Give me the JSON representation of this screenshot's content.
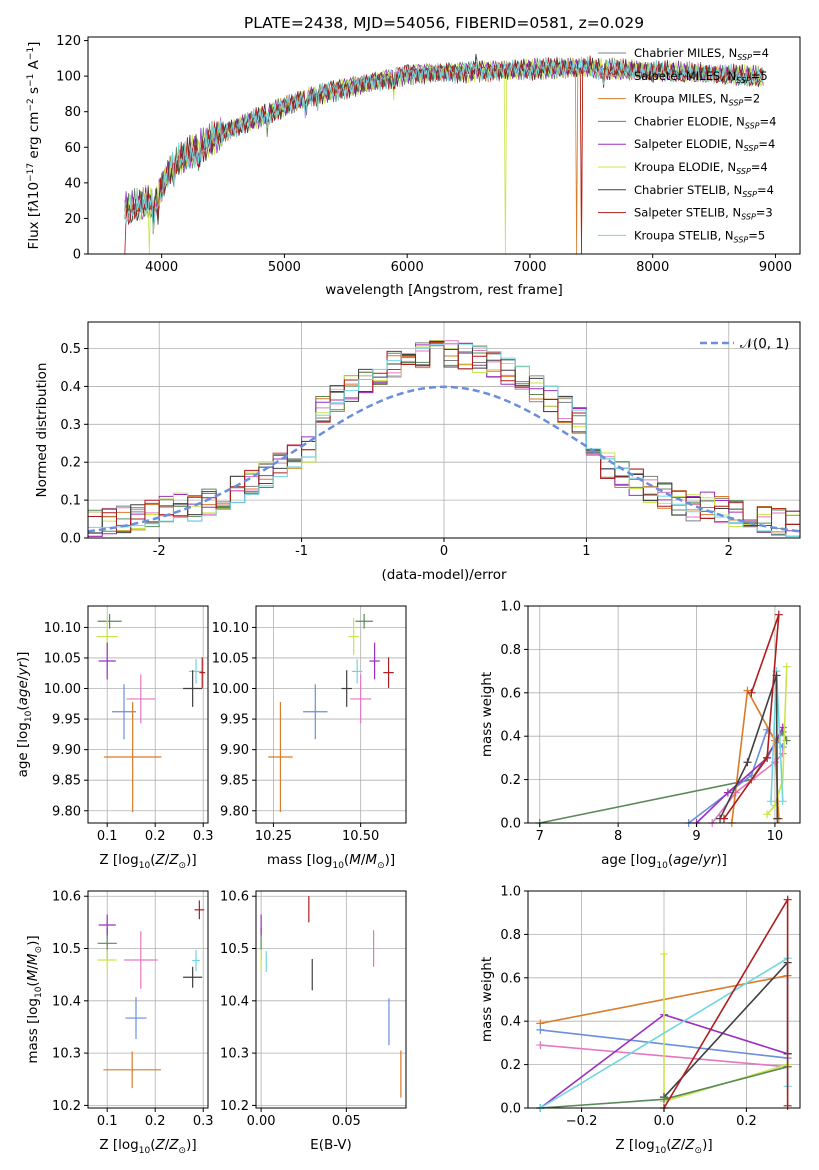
{
  "chart_data": [
    {
      "id": "spectrum",
      "type": "line",
      "title": "PLATE=2438, MJD=54056, FIBERID=0581, z=0.029",
      "xlabel": "wavelength [Angstrom, rest frame]",
      "ylabel_html": "Flux [f<tspan font-style='italic'>λ</tspan>10<tspan dy='-5' font-size='9'>−17</tspan><tspan dy='5'> erg cm</tspan><tspan dy='-5' font-size='9'>−2</tspan><tspan dy='5'> s</tspan><tspan dy='-5' font-size='9'>−1</tspan><tspan dy='5'> A</tspan><tspan dy='-5' font-size='9'>−1</tspan><tspan dy='5'>]</tspan>",
      "xlim": [
        3400,
        9200
      ],
      "ylim": [
        0,
        122
      ],
      "xticks": [
        4000,
        5000,
        6000,
        7000,
        8000,
        9000
      ],
      "yticks": [
        0,
        20,
        40,
        60,
        80,
        100,
        120
      ],
      "series": [
        {
          "name": "Chabrier MILES, N<sub>SSP</sub>=4",
          "color": "#7f7f7f",
          "seed": 1,
          "cut": null
        },
        {
          "name": "Salpeter MILES, N<sub>SSP</sub>=5",
          "color": "#e377c2",
          "seed": 2,
          "cut": null
        },
        {
          "name": "Kroupa MILES, N<sub>SSP</sub>=2",
          "color": "#d97b29",
          "seed": 3,
          "cut": [
            7380,
            7420
          ]
        },
        {
          "name": "Chabrier ELODIE, N<sub>SSP</sub>=4",
          "color": "#5a8a5a",
          "seed": 4,
          "cut": null
        },
        {
          "name": "Salpeter ELODIE, N<sub>SSP</sub>=4",
          "color": "#9b30c0",
          "seed": 5,
          "cut": null
        },
        {
          "name": "Kroupa ELODIE, N<sub>SSP</sub>=4",
          "color": "#c8e64a",
          "seed": 6,
          "cut": [
            3900,
            6800
          ]
        },
        {
          "name": "Chabrier STELIB, N<sub>SSP</sub>=4",
          "color": "#404040",
          "seed": 7,
          "cut": null
        },
        {
          "name": "Salpeter STELIB, N<sub>SSP</sub>=3",
          "color": "#b01c1c",
          "seed": 8,
          "cut": [
            3700,
            7420
          ]
        },
        {
          "name": "Kroupa STELIB, N<sub>SSP</sub>=5",
          "color": "#6fd6e0",
          "seed": 9,
          "cut": null
        }
      ]
    },
    {
      "id": "residuals",
      "type": "histogram",
      "xlabel": "(data-model)/error",
      "ylabel": "Normed distribution",
      "xlim": [
        -2.5,
        2.5
      ],
      "ylim": [
        0,
        0.57
      ],
      "xticks": [
        -2,
        -1,
        0,
        1,
        2
      ],
      "yticks": [
        0.0,
        0.1,
        0.2,
        0.3,
        0.4,
        0.5
      ],
      "legend": "𝒩(0, 1)",
      "legend_position": "top-right",
      "bin_width": 0.1,
      "reference_curve": {
        "type": "normal",
        "mean": 0,
        "sigma": 1,
        "color": "#6a8fdc"
      }
    },
    {
      "id": "age_vs_Z",
      "type": "scatter",
      "xlabel_html": "Z [log<tspan dy='4' font-size='9'>10</tspan><tspan dy='-4'>(</tspan><tspan font-style='italic'>Z</tspan>/<tspan font-style='italic'>Z</tspan><tspan dy='4' font-size='9'>⊙</tspan><tspan dy='-4'>)]</tspan>",
      "ylabel_html": "age  [log<tspan dy='4' font-size='9'>10</tspan><tspan dy='-4'>(</tspan><tspan font-style='italic'>age</tspan>/<tspan font-style='italic'>yr</tspan>)]",
      "xlim": [
        0.06,
        0.31
      ],
      "ylim": [
        9.78,
        10.135
      ],
      "xticks": [
        "0.1",
        "0.2",
        "0.3"
      ],
      "yticks": [
        "9.80",
        "9.85",
        "9.90",
        "9.95",
        "10.00",
        "10.05",
        "10.10"
      ],
      "points": [
        {
          "color": "#5a8a5a",
          "x": 0.105,
          "y": 10.11,
          "xerr": 0.025,
          "yerr": 0.012
        },
        {
          "color": "#c8e64a",
          "x": 0.1,
          "y": 10.085,
          "xerr": 0.022,
          "yerr": 0.03
        },
        {
          "color": "#9b30c0",
          "x": 0.1,
          "y": 10.045,
          "xerr": 0.018,
          "yerr": 0.03
        },
        {
          "color": "#e377c2",
          "x": 0.17,
          "y": 9.983,
          "xerr": 0.03,
          "yerr": 0.04
        },
        {
          "color": "#6a8fdc",
          "x": 0.135,
          "y": 9.962,
          "xerr": 0.025,
          "yerr": 0.045
        },
        {
          "color": "#d97b29",
          "x": 0.153,
          "y": 9.888,
          "xerr": 0.06,
          "yerr": 0.09
        },
        {
          "color": "#6fd6e0",
          "x": 0.285,
          "y": 10.028,
          "xerr": 0.015,
          "yerr": 0.02
        },
        {
          "color": "#404040",
          "x": 0.278,
          "y": 10.0,
          "xerr": 0.02,
          "yerr": 0.03
        },
        {
          "color": "#b01c1c",
          "x": 0.298,
          "y": 10.026,
          "xerr": 0.006,
          "yerr": 0.025
        }
      ]
    },
    {
      "id": "age_vs_mass",
      "type": "scatter",
      "xlabel_html": "mass [log<tspan dy='4' font-size='9'>10</tspan><tspan dy='-4'>(</tspan><tspan font-style='italic'>M</tspan>/<tspan font-style='italic'>M</tspan><tspan dy='4' font-size='9'>⊙</tspan><tspan dy='-4'>)]</tspan>",
      "xlim": [
        10.2,
        10.63
      ],
      "ylim": [
        9.78,
        10.135
      ],
      "xticks": [
        "10.25",
        "10.50"
      ],
      "yticks": [
        "9.80",
        "9.85",
        "9.90",
        "9.95",
        "10.00",
        "10.05",
        "10.10"
      ],
      "points": [
        {
          "color": "#5a8a5a",
          "x": 10.51,
          "y": 10.11,
          "xerr": 0.025,
          "yerr": 0.012
        },
        {
          "color": "#c8e64a",
          "x": 10.48,
          "y": 10.085,
          "xerr": 0.015,
          "yerr": 0.03
        },
        {
          "color": "#9b30c0",
          "x": 10.54,
          "y": 10.045,
          "xerr": 0.015,
          "yerr": 0.03
        },
        {
          "color": "#e377c2",
          "x": 10.5,
          "y": 9.983,
          "xerr": 0.03,
          "yerr": 0.04
        },
        {
          "color": "#6a8fdc",
          "x": 10.37,
          "y": 9.962,
          "xerr": 0.035,
          "yerr": 0.045
        },
        {
          "color": "#d97b29",
          "x": 10.27,
          "y": 9.888,
          "xerr": 0.035,
          "yerr": 0.09
        },
        {
          "color": "#6fd6e0",
          "x": 10.49,
          "y": 10.028,
          "xerr": 0.015,
          "yerr": 0.02
        },
        {
          "color": "#404040",
          "x": 10.46,
          "y": 10.0,
          "xerr": 0.015,
          "yerr": 0.03
        },
        {
          "color": "#b01c1c",
          "x": 10.58,
          "y": 10.026,
          "xerr": 0.015,
          "yerr": 0.025
        }
      ]
    },
    {
      "id": "weight_vs_age",
      "type": "line",
      "xlabel_html": "age  [log<tspan dy='4' font-size='9'>10</tspan><tspan dy='-4'>(</tspan><tspan font-style='italic'>age</tspan>/<tspan font-style='italic'>yr</tspan>)]",
      "ylabel": "mass weight",
      "xlim": [
        6.85,
        10.32
      ],
      "ylim": [
        0,
        1
      ],
      "xticks": [
        "7",
        "8",
        "9",
        "10"
      ],
      "yticks": [
        "0.0",
        "0.2",
        "0.4",
        "0.6",
        "0.8",
        "1.0"
      ],
      "series": [
        {
          "color": "#5a8a5a",
          "x": [
            7.0,
            9.7,
            10.1,
            10.15
          ],
          "y": [
            0.0,
            0.2,
            0.42,
            0.38
          ]
        },
        {
          "color": "#6a8fdc",
          "x": [
            8.9,
            9.7,
            9.9,
            10.1
          ],
          "y": [
            0.0,
            0.22,
            0.43,
            0.35
          ]
        },
        {
          "color": "#9b30c0",
          "x": [
            9.0,
            9.4,
            9.9,
            10.1
          ],
          "y": [
            0.0,
            0.14,
            0.3,
            0.44
          ]
        },
        {
          "color": "#e377c2",
          "x": [
            9.2,
            9.5,
            10.0,
            10.1
          ],
          "y": [
            0.0,
            0.14,
            0.28,
            0.32
          ]
        },
        {
          "color": "#d97b29",
          "x": [
            9.45,
            9.65,
            10.0,
            10.05
          ],
          "y": [
            0.0,
            0.61,
            0.38,
            0.02
          ]
        },
        {
          "color": "#c8e64a",
          "x": [
            9.9,
            10.0,
            10.1,
            10.15
          ],
          "y": [
            0.04,
            0.08,
            0.2,
            0.72
          ]
        },
        {
          "color": "#6fd6e0",
          "x": [
            9.95,
            10.02,
            10.1
          ],
          "y": [
            0.1,
            0.7,
            0.1
          ]
        },
        {
          "color": "#404040",
          "x": [
            9.3,
            9.65,
            10.02,
            10.03
          ],
          "y": [
            0.02,
            0.28,
            0.68,
            0.02
          ]
        },
        {
          "color": "#b01c1c",
          "x": [
            9.35,
            9.9,
            10.05,
            9.7
          ],
          "y": [
            0.02,
            0.3,
            0.96,
            0.6
          ]
        }
      ]
    },
    {
      "id": "mass_vs_Z",
      "type": "scatter",
      "xlabel_html": "Z [log<tspan dy='4' font-size='9'>10</tspan><tspan dy='-4'>(</tspan><tspan font-style='italic'>Z</tspan>/<tspan font-style='italic'>Z</tspan><tspan dy='4' font-size='9'>⊙</tspan><tspan dy='-4'>)]</tspan>",
      "ylabel_html": "mass [log<tspan dy='4' font-size='9'>10</tspan><tspan dy='-4'>(</tspan><tspan font-style='italic'>M</tspan>/<tspan font-style='italic'>M</tspan><tspan dy='4' font-size='9'>⊙</tspan><tspan dy='-4'>)]</tspan>",
      "xlim": [
        0.06,
        0.31
      ],
      "ylim": [
        10.195,
        10.61
      ],
      "xticks": [
        "0.1",
        "0.2",
        "0.3"
      ],
      "yticks": [
        "10.2",
        "10.3",
        "10.4",
        "10.5",
        "10.6"
      ],
      "points": [
        {
          "color": "#5a8a5a",
          "x": 0.1,
          "y": 10.51,
          "xerr": 0.02,
          "yerr": 0.03
        },
        {
          "color": "#c8e64a",
          "x": 0.1,
          "y": 10.478,
          "xerr": 0.02,
          "yerr": 0.02
        },
        {
          "color": "#9b30c0",
          "x": 0.1,
          "y": 10.545,
          "xerr": 0.018,
          "yerr": 0.02
        },
        {
          "color": "#e377c2",
          "x": 0.17,
          "y": 10.478,
          "xerr": 0.035,
          "yerr": 0.055
        },
        {
          "color": "#6a8fdc",
          "x": 0.16,
          "y": 10.367,
          "xerr": 0.022,
          "yerr": 0.04
        },
        {
          "color": "#d97b29",
          "x": 0.152,
          "y": 10.268,
          "xerr": 0.06,
          "yerr": 0.035
        },
        {
          "color": "#6fd6e0",
          "x": 0.285,
          "y": 10.477,
          "xerr": 0.008,
          "yerr": 0.02
        },
        {
          "color": "#404040",
          "x": 0.278,
          "y": 10.445,
          "xerr": 0.02,
          "yerr": 0.02
        },
        {
          "color": "#b01c1c",
          "x": 0.292,
          "y": 10.574,
          "xerr": 0.01,
          "yerr": 0.018
        }
      ]
    },
    {
      "id": "mass_vs_ebv",
      "type": "scatter",
      "xlabel": "E(B-V)",
      "xlim": [
        -0.003,
        0.085
      ],
      "ylim": [
        10.195,
        10.61
      ],
      "xticks": [
        "0.00",
        "0.05"
      ],
      "yticks": [
        "10.2",
        "10.3",
        "10.4",
        "10.5",
        "10.6"
      ],
      "points": [
        {
          "color": "#5a8a5a",
          "x": 0.0,
          "y": 10.51,
          "xerr": 0,
          "yerr": 0.03
        },
        {
          "color": "#c8e64a",
          "x": 0.0,
          "y": 10.478,
          "xerr": 0,
          "yerr": 0.02
        },
        {
          "color": "#9b30c0",
          "x": 0.0,
          "y": 10.545,
          "xerr": 0,
          "yerr": 0.02
        },
        {
          "color": "#e377c2",
          "x": 0.066,
          "y": 10.5,
          "xerr": 0,
          "yerr": 0.035
        },
        {
          "color": "#6a8fdc",
          "x": 0.075,
          "y": 10.36,
          "xerr": 0,
          "yerr": 0.045
        },
        {
          "color": "#d97b29",
          "x": 0.082,
          "y": 10.26,
          "xerr": 0,
          "yerr": 0.045
        },
        {
          "color": "#6fd6e0",
          "x": 0.003,
          "y": 10.475,
          "xerr": 0,
          "yerr": 0.02
        },
        {
          "color": "#404040",
          "x": 0.03,
          "y": 10.45,
          "xerr": 0,
          "yerr": 0.03
        },
        {
          "color": "#b01c1c",
          "x": 0.028,
          "y": 10.575,
          "xerr": 0,
          "yerr": 0.025
        }
      ]
    },
    {
      "id": "weight_vs_Z",
      "type": "line",
      "xlabel_html": "Z [log<tspan dy='4' font-size='9'>10</tspan><tspan dy='-4'>(</tspan><tspan font-style='italic'>Z</tspan>/<tspan font-style='italic'>Z</tspan><tspan dy='4' font-size='9'>⊙</tspan><tspan dy='-4'>)]</tspan>",
      "ylabel": "mass weight",
      "xlim": [
        -0.33,
        0.33
      ],
      "ylim": [
        0,
        1
      ],
      "xticks": [
        "−0.2",
        "0.0",
        "0.2"
      ],
      "yticks": [
        "0.0",
        "0.2",
        "0.4",
        "0.6",
        "0.8",
        "1.0"
      ],
      "series": [
        {
          "color": "#d97b29",
          "x": [
            -0.3,
            0.3
          ],
          "y": [
            0.39,
            0.61
          ]
        },
        {
          "color": "#6a8fdc",
          "x": [
            -0.3,
            0.3
          ],
          "y": [
            0.36,
            0.23
          ]
        },
        {
          "color": "#e377c2",
          "x": [
            -0.3,
            0.3
          ],
          "y": [
            0.29,
            0.19
          ]
        },
        {
          "color": "#9b30c0",
          "x": [
            -0.3,
            0.0,
            0.3
          ],
          "y": [
            0.0,
            0.43,
            0.25
          ]
        },
        {
          "color": "#c8e64a",
          "x": [
            0.0,
            0.0,
            0.3
          ],
          "y": [
            0.71,
            0.03,
            0.2
          ]
        },
        {
          "color": "#404040",
          "x": [
            0.0,
            0.3,
            0.3
          ],
          "y": [
            0.05,
            0.67,
            0.25
          ]
        },
        {
          "color": "#5a8a5a",
          "x": [
            -0.3,
            0.0,
            0.3
          ],
          "y": [
            0.0,
            0.04,
            0.19
          ]
        },
        {
          "color": "#6fd6e0",
          "x": [
            -0.3,
            0.3,
            0.3
          ],
          "y": [
            0.0,
            0.69,
            0.1
          ]
        },
        {
          "color": "#b01c1c",
          "x": [
            0.0,
            0.3,
            0.3
          ],
          "y": [
            0.0,
            0.96,
            0.01
          ]
        }
      ]
    }
  ]
}
